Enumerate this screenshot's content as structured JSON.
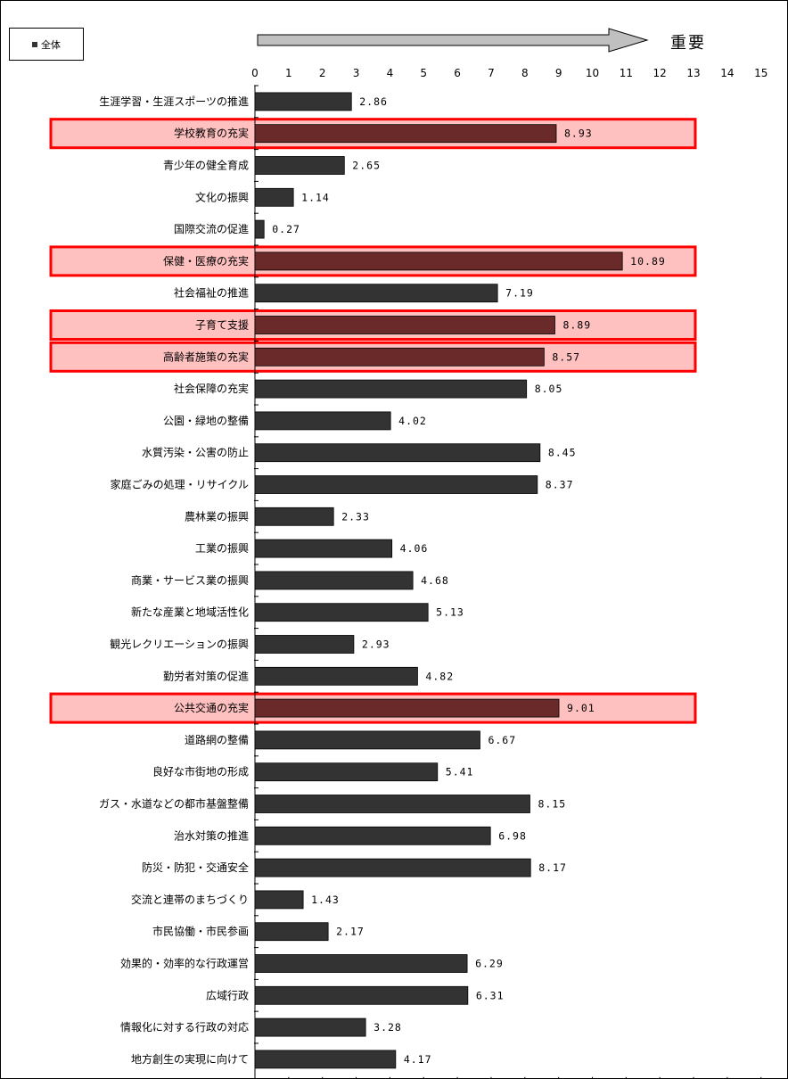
{
  "legend": {
    "label": "全体"
  },
  "axis_title": "重要",
  "chart_data": {
    "type": "bar",
    "orientation": "horizontal",
    "xlim": [
      0,
      15
    ],
    "ticks": [
      "0",
      "1",
      "2",
      "3",
      "4",
      "5",
      "6",
      "7",
      "8",
      "9",
      "10",
      "11",
      "12",
      "13",
      "14",
      "15"
    ],
    "categories": [
      "生涯学習・生涯スポーツの推進",
      "学校教育の充実",
      "青少年の健全育成",
      "文化の振興",
      "国際交流の促進",
      "保健・医療の充実",
      "社会福祉の推進",
      "子育て支援",
      "高齢者施策の充実",
      "社会保障の充実",
      "公園・緑地の整備",
      "水質汚染・公害の防止",
      "家庭ごみの処理・リサイクル",
      "農林業の振興",
      "工業の振興",
      "商業・サービス業の振興",
      "新たな産業と地域活性化",
      "観光レクリエーションの振興",
      "勤労者対策の促進",
      "公共交通の充実",
      "道路網の整備",
      "良好な市街地の形成",
      "ガス・水道などの都市基盤整備",
      "治水対策の推進",
      "防災・防犯・交通安全",
      "交流と連帯のまちづくり",
      "市民協働・市民参画",
      "効果的・効率的な行政運営",
      "広域行政",
      "情報化に対する行政の対応",
      "地方創生の実現に向けて"
    ],
    "values": [
      2.86,
      8.93,
      2.65,
      1.14,
      0.27,
      10.89,
      7.19,
      8.89,
      8.57,
      8.05,
      4.02,
      8.45,
      8.37,
      2.33,
      4.06,
      4.68,
      5.13,
      2.93,
      4.82,
      9.01,
      6.67,
      5.41,
      8.15,
      6.98,
      8.17,
      1.43,
      2.17,
      6.29,
      6.31,
      3.28,
      4.17
    ],
    "value_labels": [
      "2.86",
      "8.93",
      "2.65",
      "1.14",
      "0.27",
      "10.89",
      "7.19",
      "8.89",
      "8.57",
      "8.05",
      "4.02",
      "8.45",
      "8.37",
      "2.33",
      "4.06",
      "4.68",
      "5.13",
      "2.93",
      "4.82",
      "9.01",
      "6.67",
      "5.41",
      "8.15",
      "6.98",
      "8.17",
      "1.43",
      "2.17",
      "6.29",
      "6.31",
      "3.28",
      "4.17"
    ],
    "highlighted": [
      "学校教育の充実",
      "保健・医療の充実",
      "子育て支援",
      "高齢者施策の充実",
      "公共交通の充実"
    ],
    "colors": {
      "bar": "#333333",
      "bar_highlight": "#6b2a2a",
      "highlight_fill": "#ffc0c0",
      "highlight_border": "#ff0000",
      "arrow": "#c0c0c0"
    }
  }
}
